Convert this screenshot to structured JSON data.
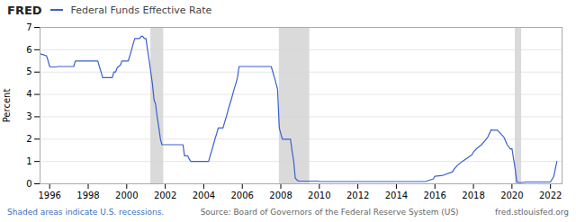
{
  "chart_data": {
    "type": "line",
    "title": "Federal Funds Effective Rate",
    "ylabel": "Percent",
    "annotations": [
      "FRED",
      "Shaded areas indicate U.S. recessions.",
      "Source: Board of Governors of the Federal Reserve System (US)",
      "fred.stlouisfed.org"
    ],
    "xlim": [
      1995.5,
      2022.6
    ],
    "xticks": [
      1996,
      1998,
      2000,
      2002,
      2004,
      2006,
      2008,
      2010,
      2012,
      2014,
      2016,
      2018,
      2020,
      2022
    ],
    "ylim": [
      0,
      7
    ],
    "yticks": [
      0,
      1,
      2,
      3,
      4,
      5,
      6,
      7
    ],
    "grid": true,
    "recession_bands": [
      [
        2001.25,
        2001.92
      ],
      [
        2007.92,
        2009.5
      ],
      [
        2020.17,
        2020.5
      ]
    ],
    "recession_color": "#d3d3d3",
    "color": "#3a5fcd",
    "x": [
      1995.5,
      1995.58,
      1995.67,
      1995.75,
      1995.83,
      1995.92,
      1996.0,
      1996.08,
      1996.17,
      1996.25,
      1996.33,
      1996.42,
      1996.5,
      1996.58,
      1996.67,
      1996.75,
      1996.83,
      1996.92,
      1997.0,
      1997.08,
      1997.17,
      1997.25,
      1997.33,
      1997.42,
      1997.5,
      1997.58,
      1997.67,
      1997.75,
      1997.83,
      1997.92,
      1998.0,
      1998.08,
      1998.17,
      1998.25,
      1998.33,
      1998.42,
      1998.5,
      1998.58,
      1998.67,
      1998.75,
      1998.83,
      1998.92,
      1999.0,
      1999.08,
      1999.17,
      1999.25,
      1999.33,
      1999.42,
      1999.5,
      1999.58,
      1999.67,
      1999.75,
      1999.83,
      1999.92,
      2000.0,
      2000.08,
      2000.17,
      2000.25,
      2000.33,
      2000.42,
      2000.5,
      2000.58,
      2000.67,
      2000.75,
      2000.83,
      2000.92,
      2001.0,
      2001.08,
      2001.17,
      2001.25,
      2001.33,
      2001.42,
      2001.5,
      2001.58,
      2001.67,
      2001.75,
      2001.83,
      2001.92,
      2002.0,
      2002.08,
      2002.17,
      2002.25,
      2002.33,
      2002.42,
      2002.5,
      2002.58,
      2002.67,
      2002.75,
      2002.83,
      2002.92,
      2003.0,
      2003.08,
      2003.17,
      2003.25,
      2003.33,
      2003.42,
      2003.5,
      2003.58,
      2003.67,
      2003.75,
      2003.83,
      2003.92,
      2004.0,
      2004.08,
      2004.17,
      2004.25,
      2004.33,
      2004.42,
      2004.5,
      2004.58,
      2004.67,
      2004.75,
      2004.83,
      2004.92,
      2005.0,
      2005.08,
      2005.17,
      2005.25,
      2005.33,
      2005.42,
      2005.5,
      2005.58,
      2005.67,
      2005.75,
      2005.83,
      2005.92,
      2006.0,
      2006.08,
      2006.17,
      2006.25,
      2006.33,
      2006.42,
      2006.5,
      2006.58,
      2006.67,
      2006.75,
      2006.83,
      2006.92,
      2007.0,
      2007.08,
      2007.17,
      2007.25,
      2007.33,
      2007.42,
      2007.5,
      2007.58,
      2007.67,
      2007.75,
      2007.83,
      2007.92,
      2008.0,
      2008.08,
      2008.17,
      2008.25,
      2008.33,
      2008.42,
      2008.5,
      2008.58,
      2008.67,
      2008.75,
      2008.83,
      2008.92,
      2009.0,
      2009.08,
      2009.17,
      2009.25,
      2009.33,
      2009.42,
      2009.5,
      2009.58,
      2009.67,
      2009.75,
      2009.83,
      2009.92,
      2010.0,
      2010.25,
      2010.5,
      2010.75,
      2011.0,
      2011.5,
      2012.0,
      2012.5,
      2013.0,
      2013.5,
      2014.0,
      2014.5,
      2015.0,
      2015.5,
      2015.92,
      2016.0,
      2016.42,
      2016.92,
      2017.0,
      2017.17,
      2017.42,
      2017.67,
      2017.92,
      2018.0,
      2018.17,
      2018.42,
      2018.58,
      2018.75,
      2018.92,
      2019.0,
      2019.25,
      2019.58,
      2019.75,
      2019.92,
      2020.0,
      2020.17,
      2020.25,
      2020.33,
      2020.5,
      2020.75,
      2020.92,
      2021.0,
      2021.5,
      2021.92,
      2022.0,
      2022.17,
      2022.33
    ],
    "values": [
      5.83,
      5.8,
      5.78,
      5.75,
      5.74,
      5.5,
      5.25,
      5.23,
      5.23,
      5.23,
      5.23,
      5.25,
      5.25,
      5.25,
      5.25,
      5.25,
      5.25,
      5.25,
      5.25,
      5.25,
      5.25,
      5.25,
      5.5,
      5.5,
      5.5,
      5.5,
      5.5,
      5.5,
      5.5,
      5.5,
      5.5,
      5.5,
      5.5,
      5.5,
      5.5,
      5.5,
      5.5,
      5.25,
      5.0,
      4.75,
      4.75,
      4.75,
      4.75,
      4.75,
      4.75,
      4.75,
      5.0,
      5.0,
      5.19,
      5.25,
      5.31,
      5.5,
      5.5,
      5.5,
      5.5,
      5.5,
      5.75,
      6.0,
      6.25,
      6.5,
      6.5,
      6.5,
      6.5,
      6.6,
      6.6,
      6.5,
      6.5,
      6.0,
      5.5,
      5.0,
      4.5,
      3.75,
      3.56,
      3.0,
      2.5,
      2.0,
      1.75,
      1.75,
      1.75,
      1.75,
      1.75,
      1.75,
      1.75,
      1.75,
      1.75,
      1.75,
      1.75,
      1.75,
      1.75,
      1.75,
      1.25,
      1.25,
      1.25,
      1.1,
      1.0,
      1.0,
      1.0,
      1.0,
      1.0,
      1.0,
      1.0,
      1.0,
      1.0,
      1.0,
      1.0,
      1.0,
      1.25,
      1.5,
      1.75,
      2.0,
      2.25,
      2.5,
      2.5,
      2.5,
      2.5,
      2.75,
      3.0,
      3.25,
      3.5,
      3.75,
      4.0,
      4.25,
      4.5,
      4.75,
      5.25,
      5.25,
      5.25,
      5.25,
      5.25,
      5.25,
      5.25,
      5.25,
      5.25,
      5.25,
      5.25,
      5.25,
      5.25,
      5.25,
      5.25,
      5.25,
      5.25,
      5.25,
      5.25,
      5.25,
      5.25,
      5.02,
      4.75,
      4.5,
      4.24,
      2.5,
      2.24,
      2.0,
      2.0,
      2.0,
      2.0,
      2.0,
      2.0,
      1.5,
      1.0,
      0.25,
      0.18,
      0.12,
      0.12,
      0.12,
      0.12,
      0.12,
      0.12,
      0.12,
      0.12,
      0.12,
      0.12,
      0.12,
      0.12,
      0.12,
      0.1,
      0.1,
      0.1,
      0.1,
      0.1,
      0.1,
      0.1,
      0.1,
      0.1,
      0.1,
      0.1,
      0.1,
      0.1,
      0.1,
      0.22,
      0.34,
      0.38,
      0.54,
      0.66,
      0.83,
      1.0,
      1.15,
      1.3,
      1.42,
      1.58,
      1.75,
      1.91,
      2.1,
      2.42,
      2.4,
      2.4,
      2.09,
      1.75,
      1.55,
      1.58,
      0.65,
      0.08,
      0.06,
      0.06,
      0.08,
      0.08,
      0.08,
      0.08,
      0.08,
      0.08,
      0.33,
      1.0
    ]
  }
}
